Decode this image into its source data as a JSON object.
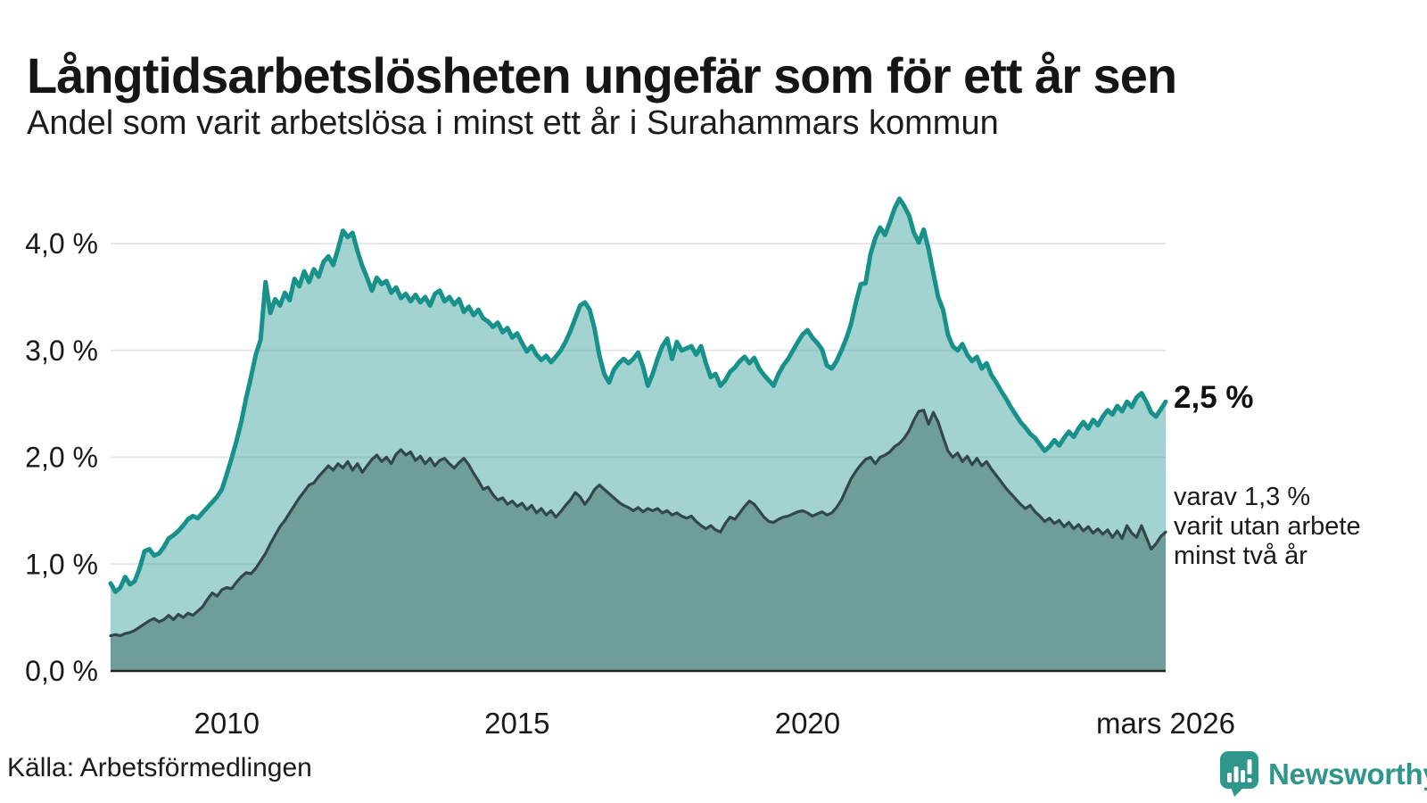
{
  "header": {
    "title": "Långtidsarbetslösheten ungefär som för ett år sen",
    "subtitle": "Andel som varit arbetslösa i minst ett år i Surahammars kommun"
  },
  "annotations": {
    "primary_value": "2,5 %",
    "secondary_lines": [
      "varav 1,3 %",
      "varit utan arbete",
      "minst två år"
    ]
  },
  "footer": {
    "source": "Källa: Arbetsförmedlingen",
    "logo_text": "Newsworthy",
    "logo_color": "#2f968c"
  },
  "chart_data": {
    "type": "area",
    "stacked": false,
    "title": "Långtidsarbetslösheten ungefär som för ett år sen",
    "subtitle": "Andel som varit arbetslösa i minst ett år i Surahammars kommun",
    "x_domain": [
      2008.0,
      2026.1667
    ],
    "x_unit": "month",
    "ylim": [
      0,
      4.6
    ],
    "grid": true,
    "grid_color": "#e7e7eb",
    "axis_color": "#222222",
    "tick_color": "#191919",
    "yticks": [
      {
        "value": 0,
        "label": "0,0 %"
      },
      {
        "value": 1,
        "label": "1,0 %"
      },
      {
        "value": 2,
        "label": "2,0 %"
      },
      {
        "value": 3,
        "label": "3,0 %"
      },
      {
        "value": 4,
        "label": "4,0 %"
      }
    ],
    "xticks": [
      {
        "value": 2010.0,
        "label": "2010"
      },
      {
        "value": 2015.0,
        "label": "2015"
      },
      {
        "value": 2020.0,
        "label": "2020"
      },
      {
        "value": 2026.1667,
        "label": "mars 2026"
      }
    ],
    "series": [
      {
        "id": "unemployed-at-least-one-year",
        "end_label": "2,5 %",
        "end_value": 2.5,
        "line_color": "#18918a",
        "fill_color": "rgba(24,145,138,0.40)",
        "line_width": 5,
        "values": [
          0.82,
          0.74,
          0.78,
          0.88,
          0.81,
          0.84,
          0.96,
          1.12,
          1.14,
          1.08,
          1.1,
          1.16,
          1.24,
          1.27,
          1.31,
          1.36,
          1.42,
          1.45,
          1.43,
          1.48,
          1.53,
          1.58,
          1.63,
          1.7,
          1.84,
          1.99,
          2.15,
          2.33,
          2.55,
          2.75,
          2.96,
          3.1,
          3.64,
          3.35,
          3.48,
          3.42,
          3.54,
          3.47,
          3.67,
          3.6,
          3.74,
          3.64,
          3.76,
          3.69,
          3.83,
          3.88,
          3.8,
          3.95,
          4.12,
          4.06,
          4.1,
          3.93,
          3.79,
          3.68,
          3.56,
          3.68,
          3.62,
          3.65,
          3.54,
          3.59,
          3.49,
          3.53,
          3.46,
          3.52,
          3.45,
          3.5,
          3.42,
          3.53,
          3.56,
          3.46,
          3.5,
          3.43,
          3.48,
          3.36,
          3.41,
          3.33,
          3.38,
          3.3,
          3.27,
          3.22,
          3.26,
          3.17,
          3.21,
          3.12,
          3.16,
          3.07,
          2.99,
          3.04,
          2.96,
          2.91,
          2.95,
          2.89,
          2.94,
          3.0,
          3.08,
          3.18,
          3.3,
          3.42,
          3.45,
          3.38,
          3.2,
          2.95,
          2.78,
          2.7,
          2.82,
          2.88,
          2.92,
          2.88,
          2.92,
          2.98,
          2.85,
          2.67,
          2.78,
          2.92,
          3.04,
          3.11,
          2.92,
          3.08,
          3.0,
          3.02,
          3.04,
          2.96,
          3.04,
          2.88,
          2.75,
          2.78,
          2.67,
          2.72,
          2.8,
          2.84,
          2.9,
          2.94,
          2.88,
          2.93,
          2.83,
          2.77,
          2.72,
          2.67,
          2.78,
          2.86,
          2.92,
          3.0,
          3.08,
          3.15,
          3.19,
          3.12,
          3.07,
          3.01,
          2.86,
          2.83,
          2.9,
          3.0,
          3.11,
          3.25,
          3.45,
          3.62,
          3.63,
          3.9,
          4.05,
          4.15,
          4.08,
          4.2,
          4.33,
          4.42,
          4.35,
          4.26,
          4.1,
          4.01,
          4.13,
          3.95,
          3.72,
          3.5,
          3.38,
          3.15,
          3.04,
          3.0,
          3.06,
          2.96,
          2.9,
          2.94,
          2.83,
          2.88,
          2.77,
          2.7,
          2.62,
          2.55,
          2.47,
          2.4,
          2.33,
          2.28,
          2.22,
          2.18,
          2.12,
          2.06,
          2.1,
          2.16,
          2.11,
          2.18,
          2.24,
          2.19,
          2.27,
          2.33,
          2.27,
          2.35,
          2.3,
          2.38,
          2.44,
          2.4,
          2.48,
          2.43,
          2.52,
          2.47,
          2.56,
          2.6,
          2.52,
          2.42,
          2.38,
          2.45,
          2.52
        ]
      },
      {
        "id": "unemployed-at-least-two-years",
        "end_label": "varav 1,3 % varit utan arbete minst två år",
        "end_value": 1.3,
        "line_color": "#31474c",
        "fill_color": "#6f9e99",
        "line_width": 3.2,
        "values": [
          0.33,
          0.34,
          0.33,
          0.35,
          0.36,
          0.38,
          0.41,
          0.44,
          0.47,
          0.49,
          0.46,
          0.48,
          0.52,
          0.48,
          0.53,
          0.5,
          0.54,
          0.52,
          0.56,
          0.6,
          0.67,
          0.73,
          0.7,
          0.76,
          0.78,
          0.77,
          0.83,
          0.88,
          0.92,
          0.91,
          0.96,
          1.03,
          1.1,
          1.19,
          1.27,
          1.35,
          1.41,
          1.48,
          1.55,
          1.62,
          1.68,
          1.74,
          1.76,
          1.82,
          1.87,
          1.92,
          1.88,
          1.94,
          1.9,
          1.96,
          1.88,
          1.94,
          1.86,
          1.92,
          1.98,
          2.02,
          1.96,
          2.0,
          1.94,
          2.03,
          2.07,
          2.02,
          2.05,
          1.97,
          2.01,
          1.94,
          1.99,
          1.92,
          1.97,
          1.99,
          1.94,
          1.9,
          1.95,
          1.99,
          1.93,
          1.85,
          1.78,
          1.7,
          1.72,
          1.65,
          1.6,
          1.62,
          1.56,
          1.59,
          1.54,
          1.57,
          1.51,
          1.55,
          1.48,
          1.52,
          1.46,
          1.5,
          1.44,
          1.49,
          1.55,
          1.6,
          1.67,
          1.63,
          1.56,
          1.62,
          1.7,
          1.74,
          1.7,
          1.66,
          1.62,
          1.58,
          1.55,
          1.53,
          1.5,
          1.53,
          1.49,
          1.52,
          1.5,
          1.52,
          1.48,
          1.5,
          1.46,
          1.48,
          1.45,
          1.43,
          1.45,
          1.4,
          1.36,
          1.33,
          1.36,
          1.32,
          1.3,
          1.38,
          1.44,
          1.42,
          1.48,
          1.54,
          1.59,
          1.56,
          1.5,
          1.44,
          1.4,
          1.39,
          1.42,
          1.44,
          1.45,
          1.47,
          1.49,
          1.5,
          1.48,
          1.45,
          1.47,
          1.49,
          1.46,
          1.48,
          1.53,
          1.6,
          1.7,
          1.8,
          1.87,
          1.93,
          1.98,
          2.0,
          1.94,
          2.0,
          2.02,
          2.05,
          2.1,
          2.13,
          2.18,
          2.25,
          2.35,
          2.43,
          2.44,
          2.31,
          2.42,
          2.33,
          2.19,
          2.06,
          2.0,
          2.04,
          1.96,
          2.01,
          1.93,
          1.99,
          1.92,
          1.96,
          1.89,
          1.83,
          1.77,
          1.71,
          1.66,
          1.61,
          1.56,
          1.52,
          1.55,
          1.49,
          1.45,
          1.4,
          1.43,
          1.38,
          1.41,
          1.35,
          1.39,
          1.33,
          1.37,
          1.31,
          1.35,
          1.29,
          1.33,
          1.28,
          1.32,
          1.25,
          1.31,
          1.24,
          1.36,
          1.29,
          1.25,
          1.36,
          1.25,
          1.14,
          1.19,
          1.26,
          1.3
        ]
      }
    ]
  }
}
